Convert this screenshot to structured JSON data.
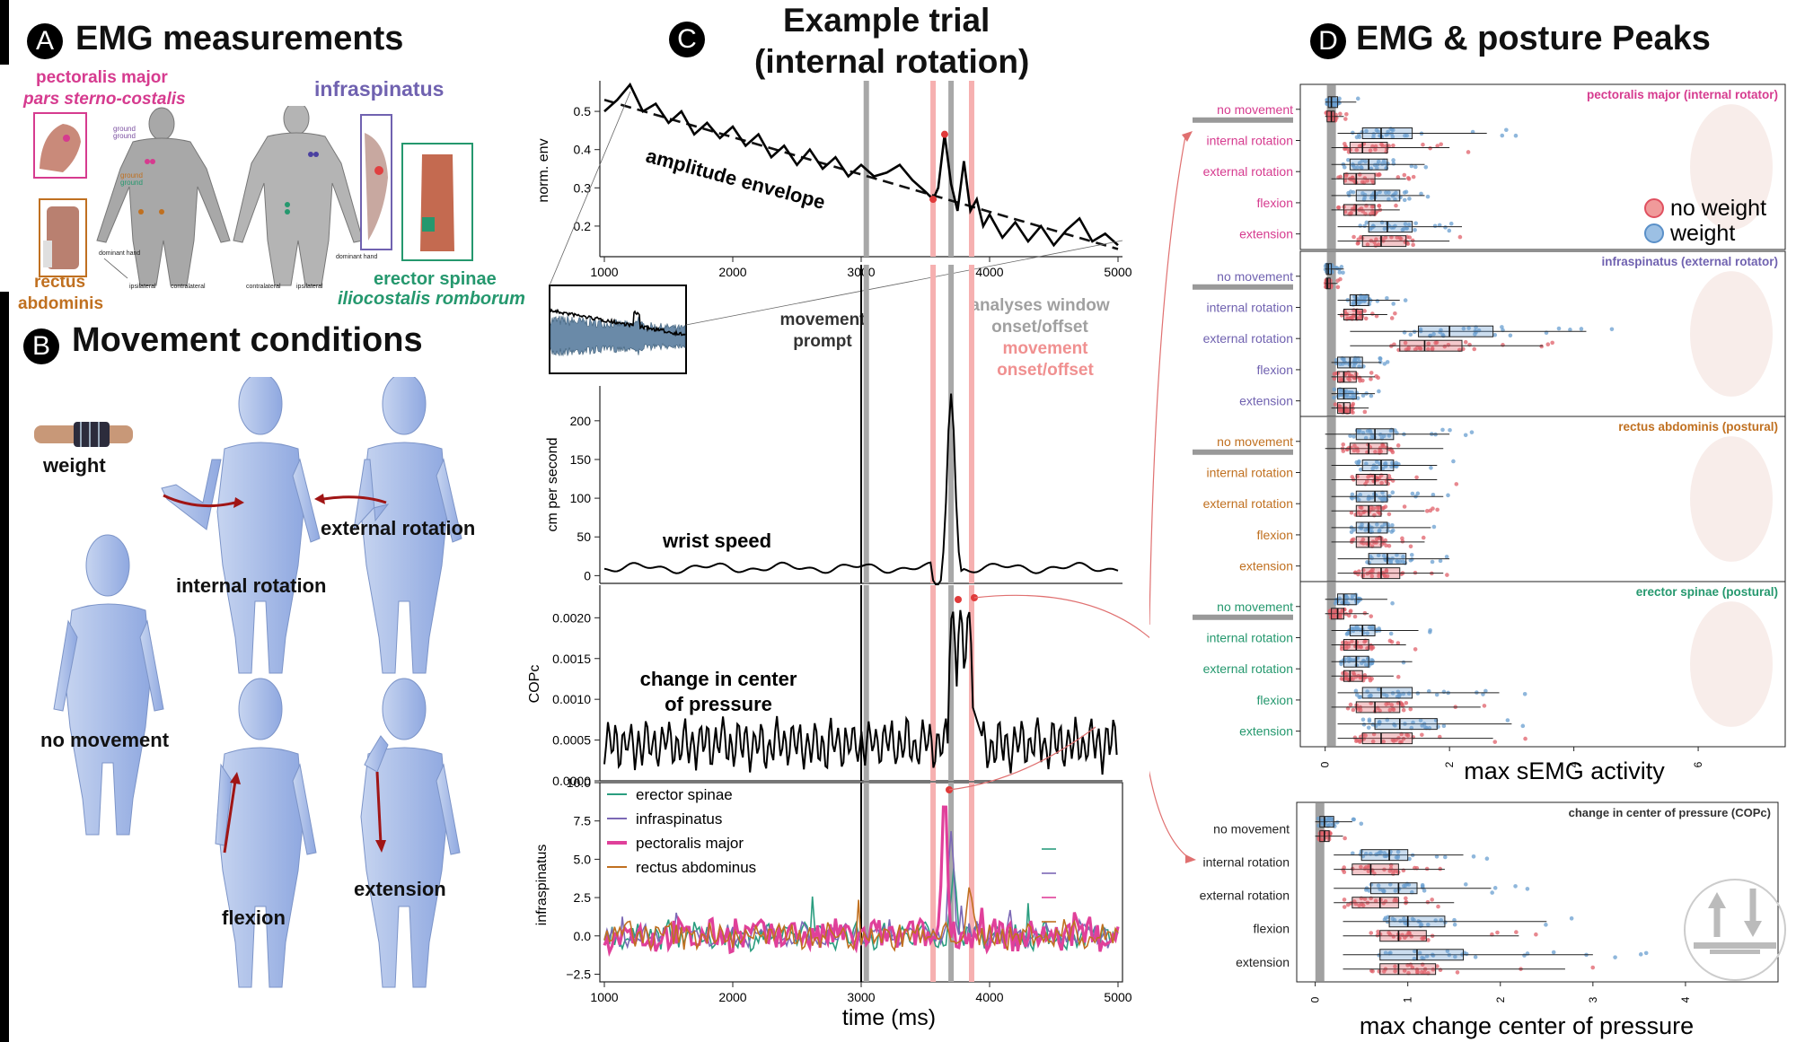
{
  "panelA": {
    "badge": "A",
    "title": "EMG measurements",
    "pectoralis_line1": "pectoralis major",
    "pectoralis_line2": "pars sterno-costalis",
    "infraspinatus": "infraspinatus",
    "rectus_line1": "rectus",
    "rectus_line2": "abdominis",
    "erector_line1": "erector spinae",
    "erector_line2": "iliocostalis romborum",
    "ground1": "ground",
    "ground2": "ground",
    "ground3": "ground",
    "ground4": "ground",
    "dominant_hand_l": "dominant hand",
    "dominant_hand_r": "dominant hand",
    "ipsilateral_l": "ipsilateral",
    "contralateral_l": "contralateral",
    "contralateral_r": "contralateral",
    "ipsilateral_r": "ipsilateral"
  },
  "panelB": {
    "badge": "B",
    "title": "Movement conditions",
    "weight": "weight",
    "internal_rotation": "internal rotation",
    "external_rotation": "external rotation",
    "no_movement": "no movement",
    "flexion": "flexion",
    "extension": "extension"
  },
  "panelC": {
    "badge": "C",
    "title_line1": "Example trial",
    "title_line2": "(internal rotation)",
    "movement_prompt_1": "movement",
    "movement_prompt_2": "prompt",
    "analyses_window_1": "analyses window",
    "analyses_window_2": "onset/offset",
    "movement_onset_1": "movement",
    "movement_onset_2": "onset/offset",
    "xlabel": "time (ms)",
    "colors": {
      "gray": "#999999",
      "pink": "#f4a6a6",
      "red": "#e05050",
      "dashed": "#111111"
    },
    "envelope": {
      "ylabel": "norm. env",
      "annotation": "amplitude envelope",
      "yticks": [
        "0.5",
        "0.4",
        "0.3",
        "0.2"
      ],
      "xticks": [
        "1000",
        "2000",
        "3000",
        "4000",
        "5000"
      ],
      "xlim": [
        1000,
        5000
      ],
      "ylim": [
        0.12,
        0.58
      ],
      "x": [
        1000,
        1100,
        1200,
        1300,
        1400,
        1500,
        1600,
        1700,
        1800,
        1900,
        2000,
        2100,
        2200,
        2300,
        2400,
        2500,
        2600,
        2700,
        2800,
        2900,
        3000,
        3100,
        3200,
        3300,
        3400,
        3500,
        3560,
        3600,
        3650,
        3700,
        3750,
        3800,
        3850,
        3900,
        3950,
        4000,
        4100,
        4200,
        4300,
        4400,
        4500,
        4600,
        4700,
        4800,
        4900,
        5000
      ],
      "y": [
        0.5,
        0.53,
        0.57,
        0.5,
        0.52,
        0.47,
        0.5,
        0.44,
        0.47,
        0.43,
        0.46,
        0.41,
        0.44,
        0.38,
        0.41,
        0.36,
        0.4,
        0.35,
        0.38,
        0.33,
        0.36,
        0.33,
        0.34,
        0.36,
        0.32,
        0.29,
        0.27,
        0.3,
        0.44,
        0.31,
        0.24,
        0.37,
        0.24,
        0.27,
        0.2,
        0.23,
        0.17,
        0.21,
        0.16,
        0.2,
        0.15,
        0.19,
        0.22,
        0.16,
        0.18,
        0.15
      ],
      "trend": [
        [
          1000,
          0.53
        ],
        [
          5000,
          0.14
        ]
      ],
      "peak": [
        3650,
        0.44
      ],
      "onset_point": [
        3560,
        0.27
      ]
    },
    "speed": {
      "ylabel": "cm per second",
      "annotation": "wrist speed",
      "yticks": [
        "200",
        "150",
        "100",
        "50",
        "0"
      ],
      "ytick_values": [
        200,
        150,
        100,
        50,
        0
      ],
      "xlim": [
        1000,
        5000
      ],
      "ylim": [
        -10,
        245
      ]
    },
    "cop": {
      "ylabel": "COPc",
      "annotation_line1": "change in center",
      "annotation_line2": "of pressure",
      "yticks": [
        "0.0020",
        "0.0015",
        "0.0010",
        "0.0005",
        "0.0000"
      ],
      "ytick_values": [
        0.002,
        0.0015,
        0.001,
        0.0005,
        0.0
      ],
      "xlim": [
        1000,
        5000
      ],
      "ylim": [
        0.0,
        0.0024
      ]
    },
    "emg": {
      "ylabel": "infraspinatus",
      "yticks": [
        "10.0",
        "7.5",
        "5.0",
        "2.5",
        "0.0",
        "−2.5"
      ],
      "ytick_values": [
        10.0,
        7.5,
        5.0,
        2.5,
        0.0,
        -2.5
      ],
      "xticks": [
        "1000",
        "2000",
        "3000",
        "4000",
        "5000"
      ],
      "xlim": [
        1000,
        5000
      ],
      "ylim": [
        -3,
        10
      ],
      "legend": [
        {
          "name": "erector spinae",
          "color": "#2a9d7f"
        },
        {
          "name": "infraspinatus",
          "color": "#7b68b5"
        },
        {
          "name": "pectoralis major",
          "color": "#e0409a"
        },
        {
          "name": "rectus abdominus",
          "color": "#c07020"
        }
      ]
    },
    "vlines": {
      "prompt": 3000,
      "gray": [
        3040,
        3700
      ],
      "pink": [
        3560,
        3860
      ]
    }
  },
  "panelD": {
    "badge": "D",
    "title": "EMG & posture Peaks",
    "legend_no_weight": "no  weight",
    "legend_weight": "weight",
    "colors": {
      "no_weight": "#e0606a",
      "weight": "#6a9fd0",
      "median_band": "#888888"
    },
    "conditions": [
      "no movement",
      "internal rotation",
      "external rotation",
      "flexion",
      "extension"
    ],
    "emg_axis": {
      "xticks": [
        "0",
        "2",
        "4",
        "6"
      ],
      "xlabel": "max sEMG activity",
      "xlim": [
        -0.4,
        7.4
      ]
    },
    "cop_axis": {
      "xticks": [
        "0",
        "1",
        "2",
        "3",
        "4"
      ],
      "xlabel": "max change center of pressure",
      "xlim": [
        -0.2,
        5.0
      ]
    },
    "subplots": [
      {
        "title": "pectoralis major (internal rotator)",
        "color": "#d63b8f",
        "boxes": {
          "weight": [
            [
              0,
              0.05,
              0.1,
              0.2,
              0.5
            ],
            [
              0.2,
              0.6,
              0.9,
              1.4,
              2.6
            ],
            [
              0.1,
              0.4,
              0.7,
              1.0,
              1.6
            ],
            [
              0.1,
              0.5,
              0.8,
              1.2,
              1.6
            ],
            [
              0.2,
              0.7,
              1.0,
              1.4,
              2.2
            ]
          ],
          "no_weight": [
            [
              0,
              0.03,
              0.1,
              0.15,
              0.3
            ],
            [
              0.1,
              0.4,
              0.6,
              1.0,
              2.0
            ],
            [
              0.1,
              0.3,
              0.5,
              0.8,
              1.3
            ],
            [
              0.1,
              0.3,
              0.5,
              0.8,
              1.2
            ],
            [
              0.2,
              0.6,
              0.9,
              1.3,
              2.0
            ]
          ]
        }
      },
      {
        "title": "infraspinatus (external rotator)",
        "color": "#7062b0",
        "boxes": {
          "weight": [
            [
              0,
              0.02,
              0.05,
              0.1,
              0.3
            ],
            [
              0.2,
              0.4,
              0.5,
              0.7,
              1.2
            ],
            [
              0.4,
              1.5,
              2.0,
              2.7,
              4.2
            ],
            [
              0.1,
              0.2,
              0.4,
              0.6,
              0.9
            ],
            [
              0.1,
              0.2,
              0.3,
              0.5,
              0.8
            ]
          ],
          "no_weight": [
            [
              0,
              0.02,
              0.04,
              0.08,
              0.2
            ],
            [
              0.2,
              0.3,
              0.5,
              0.6,
              1.0
            ],
            [
              0.4,
              1.2,
              1.6,
              2.2,
              3.5
            ],
            [
              0.1,
              0.2,
              0.3,
              0.5,
              0.8
            ],
            [
              0.1,
              0.2,
              0.3,
              0.4,
              0.7
            ]
          ]
        }
      },
      {
        "title": "rectus abdominis (postural)",
        "color": "#c07020",
        "boxes": {
          "weight": [
            [
              0,
              0.5,
              0.8,
              1.1,
              2.0
            ],
            [
              0.1,
              0.6,
              0.9,
              1.1,
              1.8
            ],
            [
              0.1,
              0.5,
              0.8,
              1.0,
              1.9
            ],
            [
              0.1,
              0.5,
              0.7,
              1.0,
              1.7
            ],
            [
              0.2,
              0.7,
              1.0,
              1.3,
              2.0
            ]
          ],
          "no_weight": [
            [
              0,
              0.4,
              0.7,
              1.0,
              1.9
            ],
            [
              0.1,
              0.5,
              0.8,
              1.0,
              1.8
            ],
            [
              0.1,
              0.5,
              0.7,
              0.9,
              1.6
            ],
            [
              0.1,
              0.5,
              0.7,
              0.9,
              1.6
            ],
            [
              0.2,
              0.6,
              0.9,
              1.2,
              1.9
            ]
          ]
        }
      },
      {
        "title": "erector spinae (postural)",
        "color": "#25986e",
        "boxes": {
          "weight": [
            [
              0,
              0.2,
              0.3,
              0.5,
              1.0
            ],
            [
              0.1,
              0.4,
              0.6,
              0.8,
              1.5
            ],
            [
              0.1,
              0.3,
              0.5,
              0.7,
              1.4
            ],
            [
              0.2,
              0.6,
              0.9,
              1.4,
              2.8
            ],
            [
              0.2,
              0.8,
              1.2,
              1.8,
              3.0
            ]
          ],
          "no_weight": [
            [
              0,
              0.1,
              0.2,
              0.3,
              0.7
            ],
            [
              0.1,
              0.3,
              0.5,
              0.7,
              1.3
            ],
            [
              0.1,
              0.3,
              0.4,
              0.6,
              1.1
            ],
            [
              0.1,
              0.5,
              0.8,
              1.2,
              2.5
            ],
            [
              0.2,
              0.6,
              0.9,
              1.4,
              2.7
            ]
          ]
        }
      }
    ],
    "cop_subplot": {
      "title": "change in center of pressure (COPc)",
      "color": "#333333",
      "boxes": {
        "weight": [
          [
            0,
            0.05,
            0.1,
            0.2,
            0.4
          ],
          [
            0.2,
            0.5,
            0.8,
            1.0,
            1.6
          ],
          [
            0.2,
            0.6,
            0.9,
            1.1,
            1.9
          ],
          [
            0.3,
            0.8,
            1.0,
            1.4,
            2.5
          ],
          [
            0.3,
            0.7,
            1.1,
            1.6,
            3.0
          ]
        ],
        "no_weight": [
          [
            0,
            0.05,
            0.1,
            0.15,
            0.3
          ],
          [
            0.2,
            0.4,
            0.6,
            0.9,
            1.4
          ],
          [
            0.2,
            0.4,
            0.7,
            0.9,
            1.5
          ],
          [
            0.3,
            0.7,
            0.9,
            1.2,
            2.2
          ],
          [
            0.3,
            0.7,
            0.9,
            1.3,
            2.7
          ]
        ]
      }
    }
  }
}
